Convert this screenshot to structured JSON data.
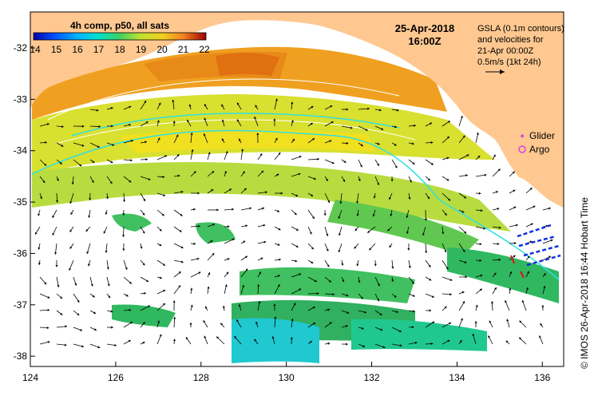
{
  "colorbar": {
    "title": "4h comp, p50, all sats",
    "ticks": [
      "14",
      "15",
      "16",
      "17",
      "18",
      "19",
      "20",
      "21",
      "22"
    ],
    "colors": [
      "#0000a8",
      "#0040ff",
      "#00a0ff",
      "#00e0e0",
      "#20d070",
      "#a0e040",
      "#f0e020",
      "#f0a020",
      "#e04010",
      "#a00000"
    ]
  },
  "timestamp": {
    "date": "25-Apr-2018",
    "time": "16:00Z"
  },
  "gsla_note": {
    "line1": "GSLA (0.1m contours)",
    "line2": "and velocities for",
    "line3": "21-Apr 00:00Z",
    "line4": "0.5m/s (1kt 24h)"
  },
  "legend": {
    "glider": "Glider",
    "argo": "Argo",
    "glider_color": "#e040e0",
    "argo_color": "#e040e0"
  },
  "axes": {
    "x_ticks": [
      "124",
      "126",
      "128",
      "130",
      "132",
      "134",
      "136"
    ],
    "y_ticks": [
      "-32",
      "-33",
      "-34",
      "-35",
      "-36",
      "-37",
      "-38"
    ],
    "lon_range": [
      124,
      136.5
    ],
    "lat_range": [
      -38.2,
      -31.3
    ]
  },
  "credit": "© IMOS 26-Apr-2018 16:44 Hobart Time",
  "colors": {
    "land": "#ffc890",
    "current": "#30e0e0"
  }
}
